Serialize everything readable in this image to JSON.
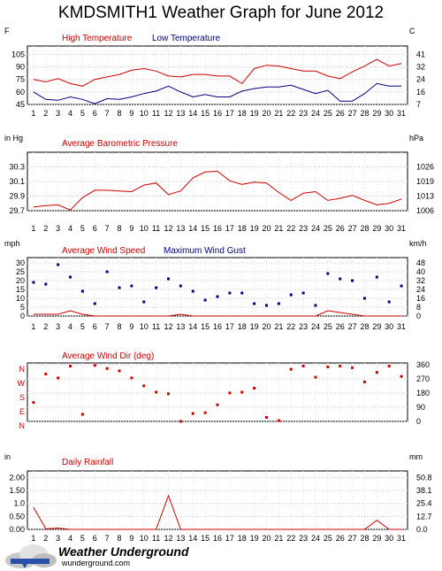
{
  "page": {
    "title": "KMDSMITH1 Weather Graph for June 2012"
  },
  "logo": {
    "brand": "Weather Underground",
    "url_text": "wunderground.com"
  },
  "chart_data": [
    {
      "id": "temperature",
      "type": "line",
      "left_unit": "F",
      "right_unit": "C",
      "legend": [
        {
          "name": "High Temperature",
          "color": "#cc0000"
        },
        {
          "name": "Low Temperature",
          "color": "#000080"
        }
      ],
      "x": [
        1,
        2,
        3,
        4,
        5,
        6,
        7,
        8,
        9,
        10,
        11,
        12,
        13,
        14,
        15,
        16,
        17,
        18,
        19,
        20,
        21,
        22,
        23,
        24,
        25,
        26,
        27,
        28,
        29,
        30,
        31
      ],
      "ylim": [
        45,
        115
      ],
      "left_ticks": [
        "105",
        "90",
        "75",
        "60",
        "45"
      ],
      "left_tick_values": [
        105,
        90,
        75,
        60,
        45
      ],
      "right_ticks": [
        "41",
        "32",
        "24",
        "16",
        "7"
      ],
      "series": [
        {
          "name": "High Temperature",
          "color": "#cc0000",
          "style": "line",
          "values": [
            75,
            72,
            76,
            70,
            67,
            75,
            78,
            81,
            86,
            88,
            85,
            79,
            78,
            81,
            81,
            79,
            79,
            70,
            88,
            92,
            91,
            88,
            85,
            85,
            79,
            76,
            84,
            91,
            99,
            91,
            94
          ]
        },
        {
          "name": "Low Temperature",
          "color": "#000080",
          "style": "line",
          "values": [
            60,
            51,
            50,
            54,
            51,
            46,
            52,
            51,
            54,
            58,
            61,
            67,
            60,
            54,
            57,
            54,
            54,
            61,
            64,
            66,
            66,
            68,
            63,
            58,
            62,
            49,
            49,
            58,
            70,
            67,
            67
          ]
        }
      ]
    },
    {
      "id": "pressure",
      "type": "line",
      "left_unit": "in Hg",
      "right_unit": "hPa",
      "legend": [
        {
          "name": "Average Barometric Pressure",
          "color": "#cc0000"
        }
      ],
      "x": [
        1,
        2,
        3,
        4,
        5,
        6,
        7,
        8,
        9,
        10,
        11,
        12,
        13,
        14,
        15,
        16,
        17,
        18,
        19,
        20,
        21,
        22,
        23,
        24,
        25,
        26,
        27,
        28,
        29,
        30,
        31
      ],
      "ylim": [
        29.7,
        30.5
      ],
      "left_ticks": [
        "30.3",
        "30.1",
        "29.9",
        "29.7"
      ],
      "left_tick_values": [
        30.3,
        30.1,
        29.9,
        29.7
      ],
      "right_ticks": [
        "1026",
        "1019",
        "1013",
        "1006"
      ],
      "series": [
        {
          "name": "Average Barometric Pressure",
          "color": "#cc0000",
          "style": "line",
          "values": [
            29.75,
            29.77,
            29.78,
            29.71,
            29.88,
            29.98,
            29.98,
            29.97,
            29.96,
            30.05,
            30.08,
            29.92,
            29.97,
            30.15,
            30.23,
            30.24,
            30.11,
            30.06,
            30.09,
            30.08,
            29.95,
            29.84,
            29.94,
            29.96,
            29.84,
            29.87,
            29.91,
            29.84,
            29.78,
            29.8,
            29.86
          ]
        }
      ]
    },
    {
      "id": "wind",
      "type": "line",
      "left_unit": "mph",
      "right_unit": "km/h",
      "legend": [
        {
          "name": "Average Wind Speed",
          "color": "#cc0000"
        },
        {
          "name": "Maximum Wind Gust",
          "color": "#000080"
        }
      ],
      "x": [
        1,
        2,
        3,
        4,
        5,
        6,
        7,
        8,
        9,
        10,
        11,
        12,
        13,
        14,
        15,
        16,
        17,
        18,
        19,
        20,
        21,
        22,
        23,
        24,
        25,
        26,
        27,
        28,
        29,
        30,
        31
      ],
      "ylim": [
        0,
        33
      ],
      "left_ticks": [
        "30",
        "25",
        "20",
        "15",
        "10",
        "5",
        "0"
      ],
      "left_tick_values": [
        30,
        25,
        20,
        15,
        10,
        5,
        0
      ],
      "right_ticks": [
        "48",
        "40",
        "32",
        "24",
        "16",
        "8",
        "0"
      ],
      "right_tick_values": [
        30,
        25,
        20,
        15,
        10,
        5,
        0
      ],
      "series": [
        {
          "name": "Average Wind Speed",
          "color": "#cc0000",
          "style": "line",
          "values": [
            1,
            1,
            1,
            3,
            1,
            0,
            0,
            0,
            0,
            0,
            0,
            0,
            1,
            0,
            0,
            0,
            0,
            0,
            0,
            0,
            0,
            0,
            0,
            0,
            3,
            2,
            1,
            0,
            0,
            0,
            0
          ]
        },
        {
          "name": "Maximum Wind Gust",
          "color": "#000080",
          "style": "points",
          "values": [
            19,
            18,
            29,
            22,
            14,
            7,
            25,
            16,
            17,
            8,
            16,
            21,
            17,
            14,
            9,
            11,
            13,
            13,
            7,
            6,
            7,
            12,
            13,
            6,
            24,
            21,
            20,
            10,
            22,
            8,
            17
          ]
        }
      ]
    },
    {
      "id": "wind-dir",
      "type": "scatter",
      "left_unit": "",
      "right_unit": "",
      "legend": [
        {
          "name": "Average Wind Dir (deg)",
          "color": "#cc0000"
        }
      ],
      "x": [
        1,
        2,
        3,
        4,
        5,
        6,
        7,
        8,
        9,
        10,
        11,
        12,
        13,
        14,
        15,
        16,
        17,
        18,
        19,
        20,
        21,
        22,
        23,
        24,
        25,
        26,
        27,
        28,
        29,
        30,
        31
      ],
      "ylim": [
        0,
        370
      ],
      "left_ticks": [
        "N",
        "W",
        "S",
        "E",
        "N"
      ],
      "left_tick_values": [
        360,
        270,
        180,
        90,
        0
      ],
      "right_ticks": [
        "360",
        "270",
        "180",
        "90",
        "0"
      ],
      "series": [
        {
          "name": "Average Wind Dir (deg)",
          "color": "#cc0000",
          "style": "points",
          "values": [
            120,
            300,
            275,
            350,
            45,
            355,
            335,
            320,
            275,
            225,
            185,
            175,
            0,
            50,
            55,
            105,
            180,
            185,
            210,
            25,
            5,
            330,
            350,
            280,
            345,
            350,
            340,
            250,
            310,
            350,
            285
          ]
        }
      ]
    },
    {
      "id": "rainfall",
      "type": "line",
      "left_unit": "in",
      "right_unit": "mm",
      "legend": [
        {
          "name": "Daily Rainfall",
          "color": "#cc0000"
        }
      ],
      "x": [
        1,
        2,
        3,
        4,
        5,
        6,
        7,
        8,
        9,
        10,
        11,
        12,
        13,
        14,
        15,
        16,
        17,
        18,
        19,
        20,
        21,
        22,
        23,
        24,
        25,
        26,
        27,
        28,
        29,
        30,
        31
      ],
      "ylim": [
        0,
        2.25
      ],
      "left_ticks": [
        "2.00",
        "1.50",
        "1.0",
        "0.50",
        "0.00"
      ],
      "left_tick_values": [
        2.0,
        1.5,
        1.0,
        0.5,
        0.0
      ],
      "right_ticks": [
        "50.8",
        "38.1",
        "25.4",
        "12.7",
        "0.0"
      ],
      "right_tick_values": [
        2.0,
        1.5,
        1.0,
        0.5,
        0.0
      ],
      "series": [
        {
          "name": "Daily Rainfall",
          "color": "#cc0000",
          "style": "line",
          "values": [
            0.85,
            0.02,
            0.05,
            0.0,
            0.0,
            0.0,
            0.0,
            0.0,
            0.0,
            0.0,
            0.0,
            1.3,
            0.0,
            0.0,
            0.0,
            0.0,
            0.0,
            0.0,
            0.0,
            0.0,
            0.0,
            0.0,
            0.0,
            0.0,
            0.0,
            0.0,
            0.0,
            0.0,
            0.35,
            0.0,
            0.0
          ]
        }
      ]
    }
  ]
}
